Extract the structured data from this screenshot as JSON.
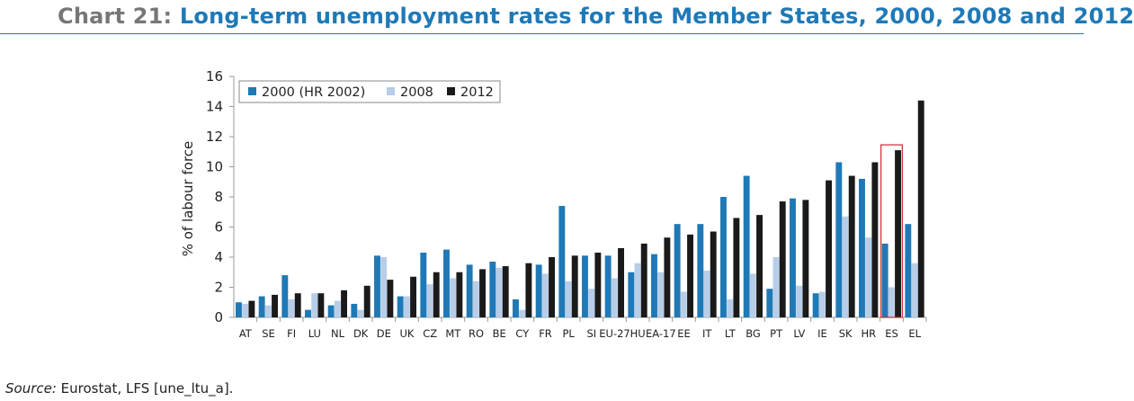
{
  "header": {
    "chart_number": "Chart 21:",
    "title": "Long-term unemployment rates for the Member States, 2000, 2008 and 2012"
  },
  "source": {
    "label": "Source:",
    "text": " Eurostat, LFS [une_ltu_a]."
  },
  "colors": {
    "series_2000": "#1f79b6",
    "series_2008": "#b7cde8",
    "series_2012": "#1a1a1a",
    "highlight": "#d0282e",
    "axis": "#9a9a9a"
  },
  "chart_data": {
    "type": "bar",
    "title": "Long-term unemployment rates for the Member States, 2000, 2008 and 2012",
    "xlabel": "",
    "ylabel": "% of labour force",
    "ylim": [
      0,
      16
    ],
    "yticks": [
      "0",
      "2",
      "4",
      "6",
      "8",
      "10",
      "12",
      "14",
      "16"
    ],
    "grid": false,
    "legend": "top-left",
    "highlighted_category": "ES",
    "categories": [
      "AT",
      "SE",
      "FI",
      "LU",
      "NL",
      "DK",
      "DE",
      "UK",
      "CZ",
      "MT",
      "RO",
      "BE",
      "CY",
      "FR",
      "PL",
      "SI",
      "EU-27",
      "HU",
      "EA-17",
      "EE",
      "IT",
      "LT",
      "BG",
      "PT",
      "LV",
      "IE",
      "SK",
      "HR",
      "ES",
      "EL"
    ],
    "series": [
      {
        "name": "2000 (HR 2002)",
        "values": [
          1.0,
          1.4,
          2.8,
          0.5,
          0.8,
          0.9,
          4.1,
          1.4,
          4.3,
          4.5,
          3.5,
          3.7,
          1.2,
          3.5,
          7.4,
          4.1,
          4.1,
          3.0,
          4.2,
          6.2,
          6.2,
          8.0,
          9.4,
          1.9,
          7.9,
          1.6,
          10.3,
          9.2,
          4.9,
          6.2
        ]
      },
      {
        "name": "2008",
        "values": [
          0.9,
          0.8,
          1.2,
          1.6,
          1.1,
          0.5,
          4.0,
          1.4,
          2.2,
          2.6,
          2.4,
          3.3,
          0.5,
          2.9,
          2.4,
          1.9,
          2.6,
          3.6,
          3.0,
          1.7,
          3.1,
          1.2,
          2.9,
          4.0,
          2.1,
          1.7,
          6.7,
          5.3,
          2.0,
          3.6
        ]
      },
      {
        "name": "2012",
        "values": [
          1.1,
          1.5,
          1.6,
          1.6,
          1.8,
          2.1,
          2.5,
          2.7,
          3.0,
          3.0,
          3.2,
          3.4,
          3.6,
          4.0,
          4.1,
          4.3,
          4.6,
          4.9,
          5.3,
          5.5,
          5.7,
          6.6,
          6.8,
          7.7,
          7.8,
          9.1,
          9.4,
          10.3,
          11.1,
          14.4
        ]
      }
    ]
  }
}
